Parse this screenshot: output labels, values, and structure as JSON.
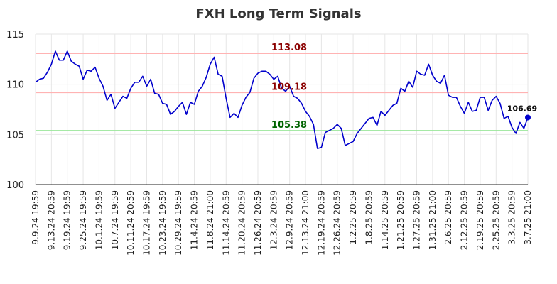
{
  "chart_data": {
    "type": "line",
    "title": "FXH Long Term Signals",
    "xlabel": "",
    "ylabel": "",
    "ylim": [
      100,
      115
    ],
    "y_ticks": [
      100,
      105,
      110,
      115
    ],
    "grid": true,
    "x_tick_labels": [
      "9.9.24 19:59",
      "9.13.24 20:59",
      "9.19.24 19:59",
      "9.25.24 19:59",
      "10.1.24 19:59",
      "10.7.24 19:59",
      "10.11.24 20:59",
      "10.17.24 19:59",
      "10.23.24 19:59",
      "10.29.24 19:59",
      "11.4.24 20:59",
      "11.8.24 21:00",
      "11.14.24 20:59",
      "11.20.24 20:59",
      "11.26.24 20:59",
      "12.3.24 20:59",
      "12.9.24 20:59",
      "12.13.24 21:00",
      "12.19.24 20:59",
      "12.26.24 20:59",
      "1.2.25 20:59",
      "1.8.25 20:59",
      "1.14.25 20:59",
      "1.21.25 20:59",
      "1.27.25 20:59",
      "1.31.25 21:00",
      "2.6.25 20:59",
      "2.12.25 20:59",
      "2.19.25 20:59",
      "2.25.25 20:59",
      "3.3.25 20:59",
      "3.7.25 21:00"
    ],
    "series": [
      {
        "color": "#0000cc",
        "values": [
          110.2,
          110.5,
          110.6,
          111.2,
          112.0,
          113.3,
          112.4,
          112.4,
          113.3,
          112.3,
          112.0,
          111.8,
          110.5,
          111.4,
          111.3,
          111.7,
          110.6,
          109.8,
          108.4,
          109.0,
          107.6,
          108.2,
          108.8,
          108.6,
          109.6,
          110.2,
          110.2,
          110.8,
          109.8,
          110.5,
          109.1,
          109.0,
          108.1,
          108.0,
          107.0,
          107.3,
          107.8,
          108.2,
          107.0,
          108.2,
          108.0,
          109.3,
          109.8,
          110.7,
          112.0,
          112.7,
          111.0,
          110.8,
          108.6,
          106.7,
          107.1,
          106.7,
          107.9,
          108.7,
          109.2,
          110.6,
          111.1,
          111.3,
          111.3,
          111.0,
          110.5,
          110.8,
          109.6,
          109.3,
          109.8,
          108.8,
          108.6,
          108.1,
          107.3,
          106.8,
          106.0,
          103.6,
          103.7,
          105.2,
          105.4,
          105.6,
          106.0,
          105.6,
          103.9,
          104.1,
          104.3,
          105.1,
          105.6,
          106.1,
          106.6,
          106.7,
          105.9,
          107.3,
          106.9,
          107.4,
          107.9,
          108.1,
          109.6,
          109.3,
          110.3,
          109.7,
          111.3,
          111.0,
          110.9,
          112.0,
          110.9,
          110.3,
          110.1,
          110.9,
          108.9,
          108.7,
          108.7,
          107.8,
          107.1,
          108.2,
          107.3,
          107.4,
          108.7,
          108.7,
          107.4,
          108.4,
          108.8,
          108.1,
          106.6,
          106.8,
          105.7,
          105.1,
          106.2,
          105.6,
          106.69
        ]
      }
    ],
    "reference_lines": [
      {
        "value": 113.08,
        "label": "113.08",
        "line_color": "#ffb3b3",
        "label_color": "#8b0000"
      },
      {
        "value": 109.18,
        "label": "109.18",
        "line_color": "#ffb3b3",
        "label_color": "#8b0000"
      },
      {
        "value": 105.38,
        "label": "105.38",
        "line_color": "#99e699",
        "label_color": "#006400"
      }
    ],
    "last_point": {
      "value": 106.69,
      "label": "106.69",
      "marker_color": "#0000cc"
    },
    "colors": {
      "grid": "#e6e6e6",
      "axis": "#222222",
      "title": "#333333"
    }
  }
}
